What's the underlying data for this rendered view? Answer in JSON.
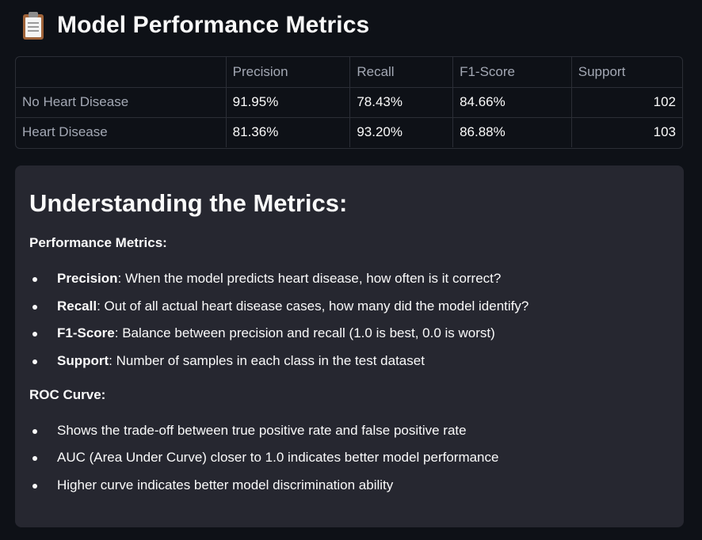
{
  "header": {
    "icon": "clipboard-icon",
    "title": "Model Performance Metrics"
  },
  "table": {
    "columns": [
      "",
      "Precision",
      "Recall",
      "F1-Score",
      "Support"
    ],
    "rows": [
      {
        "label": "No Heart Disease",
        "precision": "91.95%",
        "recall": "78.43%",
        "f1": "84.66%",
        "support": "102"
      },
      {
        "label": "Heart Disease",
        "precision": "81.36%",
        "recall": "93.20%",
        "f1": "86.88%",
        "support": "103"
      }
    ]
  },
  "info": {
    "title": "Understanding the Metrics:",
    "performance": {
      "heading": "Performance Metrics:",
      "items": [
        {
          "term": "Precision",
          "sep": ":",
          "text": " When the model predicts heart disease, how often is it correct?"
        },
        {
          "term": "Recall",
          "sep": ":",
          "text": " Out of all actual heart disease cases, how many did the model identify?"
        },
        {
          "term": "F1-Score",
          "sep": ":",
          "text": " Balance between precision and recall (1.0 is best, 0.0 is worst)"
        },
        {
          "term": "Support",
          "sep": ":",
          "text": " Number of samples in each class in the test dataset"
        }
      ]
    },
    "roc": {
      "heading": "ROC Curve:",
      "items": [
        "Shows the trade-off between true positive rate and false positive rate",
        "AUC (Area Under Curve) closer to 1.0 indicates better model performance",
        "Higher curve indicates better model discrimination ability"
      ]
    }
  }
}
